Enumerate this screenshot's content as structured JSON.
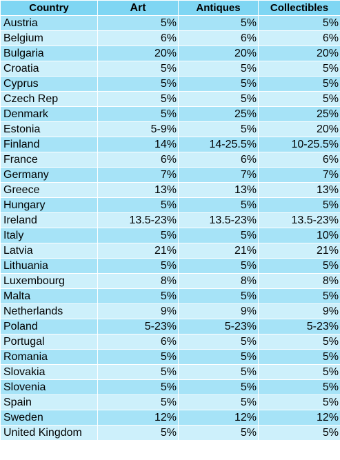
{
  "columns": [
    "Country",
    "Art",
    "Antiques",
    "Collectibles"
  ],
  "rows": [
    [
      "Austria",
      "5%",
      "5%",
      "5%"
    ],
    [
      "Belgium",
      "6%",
      "6%",
      "6%"
    ],
    [
      "Bulgaria",
      "20%",
      "20%",
      "20%"
    ],
    [
      "Croatia",
      "5%",
      "5%",
      "5%"
    ],
    [
      "Cyprus",
      "5%",
      "5%",
      "5%"
    ],
    [
      "Czech Rep",
      "5%",
      "5%",
      "5%"
    ],
    [
      "Denmark",
      "5%",
      "25%",
      "25%"
    ],
    [
      "Estonia",
      "5-9%",
      "5%",
      "20%"
    ],
    [
      "Finland",
      "14%",
      "14-25.5%",
      "10-25.5%"
    ],
    [
      "France",
      "6%",
      "6%",
      "6%"
    ],
    [
      "Germany",
      "7%",
      "7%",
      "7%"
    ],
    [
      "Greece",
      "13%",
      "13%",
      "13%"
    ],
    [
      "Hungary",
      "5%",
      "5%",
      "5%"
    ],
    [
      "Ireland",
      "13.5-23%",
      "13.5-23%",
      "13.5-23%"
    ],
    [
      "Italy",
      "5%",
      "5%",
      "10%"
    ],
    [
      "Latvia",
      "21%",
      "21%",
      "21%"
    ],
    [
      "Lithuania",
      "5%",
      "5%",
      "5%"
    ],
    [
      "Luxembourg",
      "8%",
      "8%",
      "8%"
    ],
    [
      "Malta",
      "5%",
      "5%",
      "5%"
    ],
    [
      "Netherlands",
      "9%",
      "9%",
      "9%"
    ],
    [
      "Poland",
      "5-23%",
      "5-23%",
      "5-23%"
    ],
    [
      "Portugal",
      "6%",
      "5%",
      "5%"
    ],
    [
      "Romania",
      "5%",
      "5%",
      "5%"
    ],
    [
      "Slovakia",
      "5%",
      "5%",
      "5%"
    ],
    [
      "Slovenia",
      "5%",
      "5%",
      "5%"
    ],
    [
      "Spain",
      "5%",
      "5%",
      "5%"
    ],
    [
      "Sweden",
      "12%",
      "12%",
      "12%"
    ],
    [
      "United Kingdom",
      "5%",
      "5%",
      "5%"
    ]
  ],
  "colors": {
    "header_bg": "#7fd6f3",
    "row_dark": "#a6e3f7",
    "row_light": "#cdf0fb",
    "grid": "#ffffff"
  }
}
